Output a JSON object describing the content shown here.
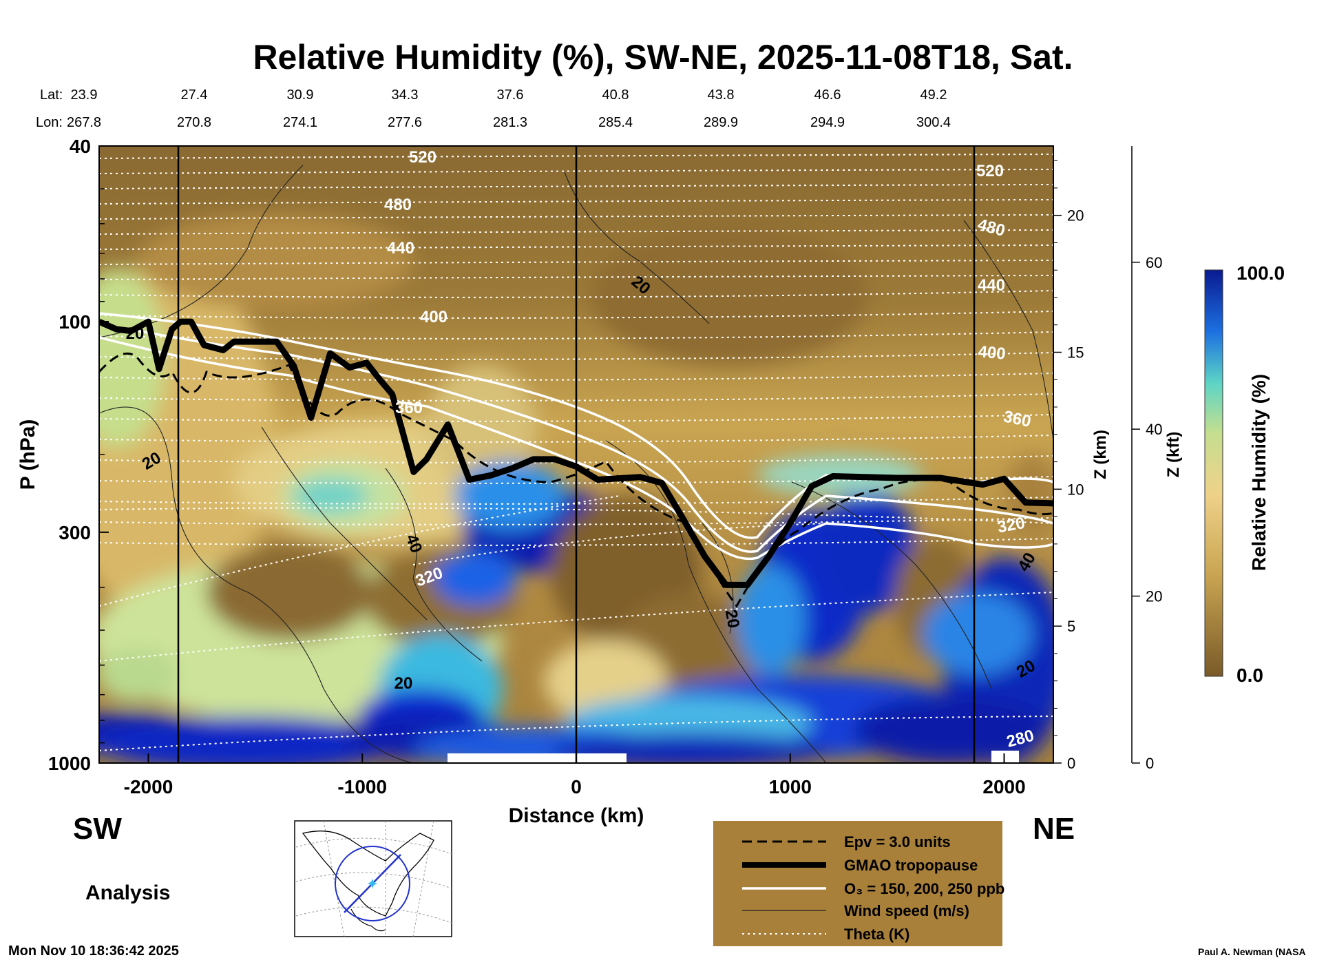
{
  "chart_data": {
    "type": "contour-cross-section",
    "title": "Relative Humidity (%), SW-NE, 2025-11-08T18, Sat.",
    "xlabel": "Distance (km)",
    "ylabel": "P (hPa)",
    "right_axis_km_label": "Z (km)",
    "right_axis_kft_label": "Z (kft)",
    "colorbar_label": "Relative Humidity (%)",
    "colorbar_max": "100.0",
    "colorbar_min": "0.0",
    "x_range": [
      -2230,
      2230
    ],
    "x_ticks": [
      "-2000",
      "-1000",
      "0",
      "1000",
      "2000"
    ],
    "y_ticks": [
      "40",
      "100",
      "300",
      "1000"
    ],
    "km_ticks": [
      "0",
      "5",
      "10",
      "15",
      "20"
    ],
    "kft_ticks": [
      "0",
      "20",
      "40",
      "60"
    ],
    "lat_label": "Lat:",
    "lon_label": "Lon:",
    "lat": [
      "23.9",
      "27.4",
      "30.9",
      "34.3",
      "37.6",
      "40.8",
      "43.8",
      "46.6",
      "49.2"
    ],
    "lon": [
      "267.8",
      "270.8",
      "274.1",
      "277.6",
      "281.3",
      "285.4",
      "289.9",
      "294.9",
      "300.4"
    ],
    "theta_labels": [
      "520",
      "480",
      "440",
      "400",
      "360",
      "320",
      "280",
      "520",
      "480",
      "440",
      "400",
      "360",
      "320"
    ],
    "wind_labels": [
      "20",
      "20",
      "40",
      "20",
      "20",
      "20",
      "40",
      "20"
    ],
    "tropopause_hpa": [
      [
        -2230,
        100
      ],
      [
        -2150,
        104
      ],
      [
        -2080,
        105
      ],
      [
        -2000,
        100
      ],
      [
        -1950,
        128
      ],
      [
        -1890,
        104
      ],
      [
        -1850,
        100
      ],
      [
        -1800,
        100
      ],
      [
        -1740,
        113
      ],
      [
        -1650,
        116
      ],
      [
        -1600,
        111
      ],
      [
        -1400,
        111
      ],
      [
        -1320,
        126
      ],
      [
        -1240,
        165
      ],
      [
        -1150,
        118
      ],
      [
        -1060,
        127
      ],
      [
        -980,
        124
      ],
      [
        -920,
        135
      ],
      [
        -860,
        146
      ],
      [
        -760,
        219
      ],
      [
        -700,
        205
      ],
      [
        -600,
        171
      ],
      [
        -500,
        228
      ],
      [
        -400,
        223
      ],
      [
        -300,
        215
      ],
      [
        -200,
        205
      ],
      [
        -100,
        205
      ],
      [
        0,
        213
      ],
      [
        100,
        228
      ],
      [
        300,
        225
      ],
      [
        400,
        232
      ],
      [
        500,
        280
      ],
      [
        600,
        340
      ],
      [
        700,
        395
      ],
      [
        800,
        395
      ],
      [
        900,
        340
      ],
      [
        1000,
        286
      ],
      [
        1100,
        236
      ],
      [
        1200,
        224
      ],
      [
        1500,
        226
      ],
      [
        1700,
        226
      ],
      [
        1900,
        234
      ],
      [
        2000,
        227
      ],
      [
        2100,
        257
      ],
      [
        2230,
        258
      ]
    ]
  },
  "footer": {
    "sw": "SW",
    "ne": "NE",
    "analysis": "Analysis",
    "timestamp": "Mon Nov 10 18:36:42 2025",
    "credit": "Paul A. Newman (NASA"
  },
  "legend": {
    "items": [
      "Epv = 3.0 units",
      "GMAO tropopause",
      "O₃ = 150, 200, 250 ppb",
      "Wind speed (m/s)",
      "Theta (K)"
    ]
  },
  "colors": {
    "dry": "#7a5a28",
    "moist": "#0a1fb0",
    "legend_bg": "#a8803a"
  }
}
